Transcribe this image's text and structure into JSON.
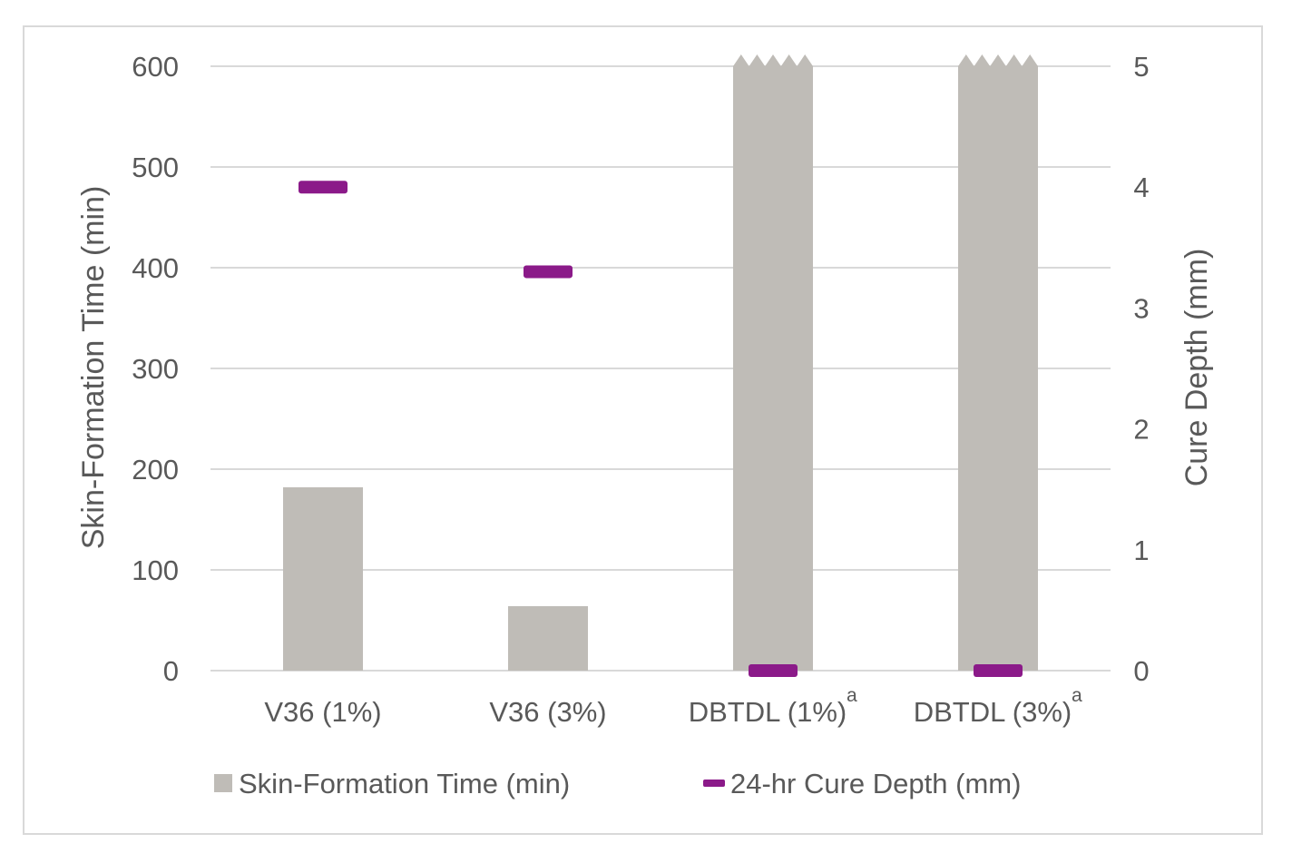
{
  "chart_data": {
    "type": "bar",
    "categories": [
      "V36 (1%)",
      "V36 (3%)",
      "DBTDL (1%)",
      "DBTDL (3%)"
    ],
    "category_superscripts": [
      "",
      "",
      "a",
      "a"
    ],
    "series": [
      {
        "name": "Skin-Formation Time (min)",
        "axis": "left",
        "kind": "bar",
        "values": [
          182,
          64,
          600,
          600
        ],
        "truncated": [
          false,
          false,
          true,
          true
        ],
        "color": "#bfbcb7"
      },
      {
        "name": "24-hr Cure Depth (mm)",
        "axis": "right",
        "kind": "marker",
        "values": [
          4.0,
          3.3,
          0,
          0
        ],
        "color": "#8b1a89"
      }
    ],
    "y_left": {
      "label": "Skin-Formation Time (min)",
      "ylim": [
        0,
        600
      ],
      "ticks": [
        "0",
        "100",
        "200",
        "300",
        "400",
        "500",
        "600"
      ]
    },
    "y_right": {
      "label": "Cure Depth (mm)",
      "ylim": [
        0,
        5
      ],
      "ticks": [
        "0",
        "1",
        "2",
        "3",
        "4",
        "5"
      ]
    },
    "grid": true,
    "legend": {
      "position": "bottom",
      "items": [
        "Skin-Formation Time (min)",
        "24-hr Cure Depth (mm)"
      ]
    },
    "gridline_color": "#d9d9d9"
  }
}
